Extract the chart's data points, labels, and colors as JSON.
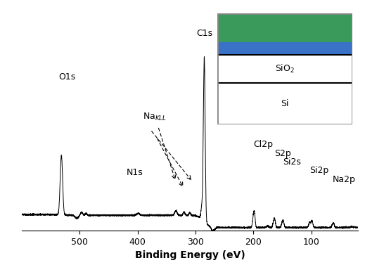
{
  "title": "",
  "xlabel": "Binding Energy (eV)",
  "ylabel": "",
  "xlim": [
    600,
    20
  ],
  "ylim": [
    0,
    1.25
  ],
  "x_ticks": [
    500,
    400,
    300,
    200,
    100
  ],
  "line_color": "#000000",
  "inset": {
    "green_color": "#3a9a5c",
    "blue_color": "#3a72c8",
    "border_color": "#888888",
    "sio2_label": "SiO$_2$",
    "si_label": "Si"
  },
  "labels": {
    "O1s": {
      "be": 532,
      "text": "O1s"
    },
    "C1s": {
      "be": 285,
      "text": "C1s"
    },
    "Na_KLL": {
      "be": 497,
      "text": "Na$_{KLL}$"
    },
    "N1s": {
      "be": 399,
      "text": "N1s"
    },
    "Cl2p": {
      "be": 200,
      "text": "Cl2p"
    },
    "S2p": {
      "be": 164,
      "text": "S2p"
    },
    "Si2s": {
      "be": 149,
      "text": "Si2s"
    },
    "Si2p": {
      "be": 99,
      "text": "Si2p"
    },
    "Na2p": {
      "be": 63,
      "text": "Na2p"
    }
  }
}
